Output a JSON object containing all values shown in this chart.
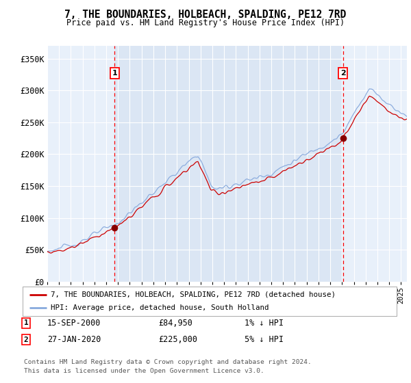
{
  "title": "7, THE BOUNDARIES, HOLBEACH, SPALDING, PE12 7RD",
  "subtitle": "Price paid vs. HM Land Registry's House Price Index (HPI)",
  "ylabel_ticks": [
    "£0",
    "£50K",
    "£100K",
    "£150K",
    "£200K",
    "£250K",
    "£300K",
    "£350K"
  ],
  "ytick_values": [
    0,
    50000,
    100000,
    150000,
    200000,
    250000,
    300000,
    350000
  ],
  "ylim": [
    0,
    370000
  ],
  "xlim_start": 1995.0,
  "xlim_end": 2025.5,
  "sale1": {
    "date_num": 2000.71,
    "price": 84950,
    "label": "1",
    "date_str": "15-SEP-2000",
    "pct": "1%"
  },
  "sale2": {
    "date_num": 2020.07,
    "price": 225000,
    "label": "2",
    "date_str": "27-JAN-2020",
    "pct": "5%"
  },
  "legend_line1": "7, THE BOUNDARIES, HOLBEACH, SPALDING, PE12 7RD (detached house)",
  "legend_line2": "HPI: Average price, detached house, South Holland",
  "footnote1": "Contains HM Land Registry data © Crown copyright and database right 2024.",
  "footnote2": "This data is licensed under the Open Government Licence v3.0.",
  "price_line_color": "#cc0000",
  "hpi_line_color": "#88aadd",
  "plot_bg_color": "#e8f0fa",
  "grid_color": "#ffffff",
  "stripe_color": "#d0ddf0"
}
